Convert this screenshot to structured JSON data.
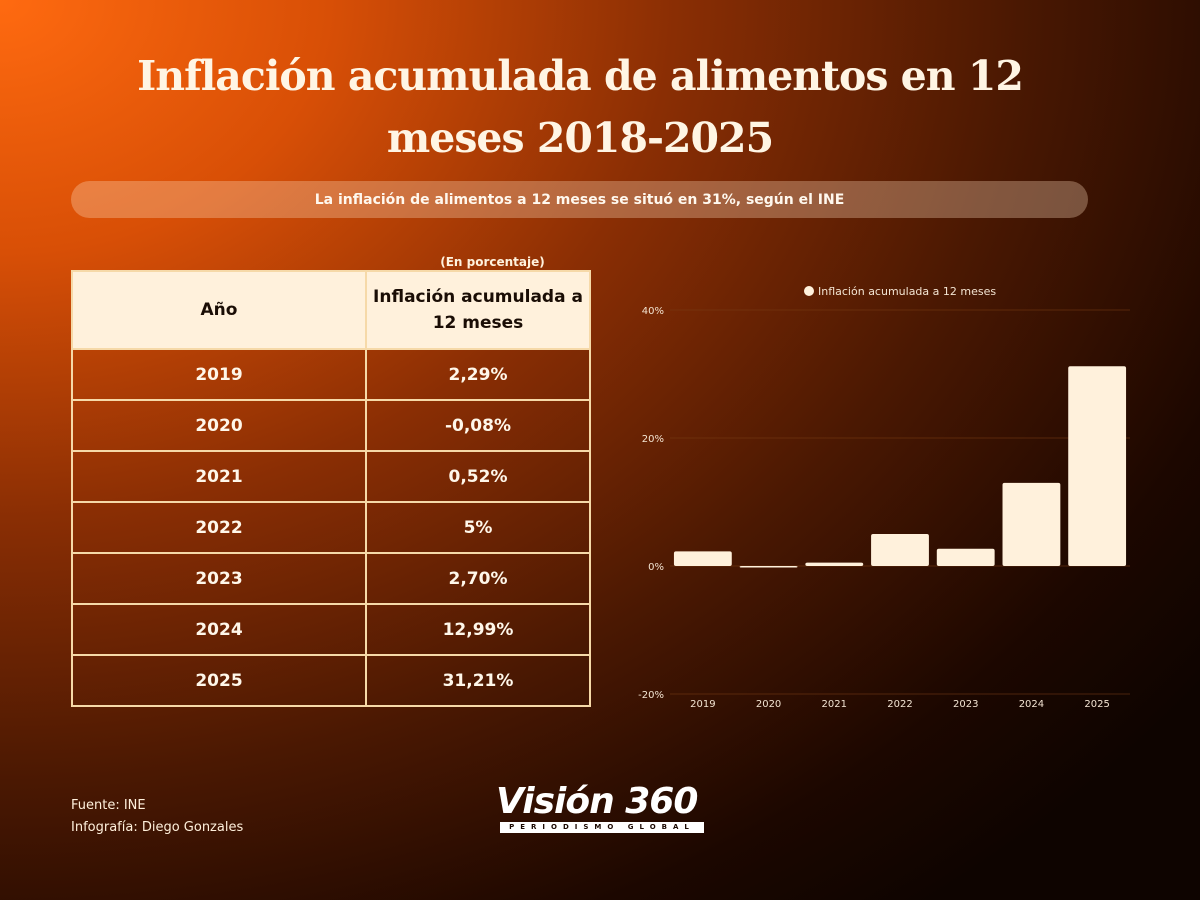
{
  "title_line1": "Inflación acumulada de alimentos en 12",
  "title_line2": "meses 2018-2025",
  "subtitle": "La inflación de alimentos a 12 meses  se situó en 31%, según el INE",
  "unit_note": "(En porcentaje)",
  "table": {
    "headers": [
      "Año",
      "Inflación acumulada a 12 meses"
    ],
    "rows": [
      [
        "2019",
        "2,29%"
      ],
      [
        "2020",
        "-0,08%"
      ],
      [
        "2021",
        "0,52%"
      ],
      [
        "2022",
        "5%"
      ],
      [
        "2023",
        "2,70%"
      ],
      [
        "2024",
        "12,99%"
      ],
      [
        "2025",
        "31,21%"
      ]
    ]
  },
  "chart_data": {
    "type": "bar",
    "categories": [
      "2019",
      "2020",
      "2021",
      "2022",
      "2023",
      "2024",
      "2025"
    ],
    "series": [
      {
        "name": "Inflación acumulada a 12 meses",
        "values": [
          2.29,
          -0.08,
          0.52,
          5,
          2.7,
          12.99,
          31.21
        ],
        "color": "#fff1dc"
      }
    ],
    "ylim": [
      -20,
      40
    ],
    "yticks": [
      -20,
      0,
      20,
      40
    ],
    "ytick_labels": [
      "-20%",
      "0%",
      "20%",
      "40%"
    ],
    "grid": true,
    "legend": "top-center",
    "xlabel": "",
    "ylabel": ""
  },
  "footer": {
    "source": "Fuente: INE",
    "credit": "Infografía: Diego Gonzales"
  },
  "logo": {
    "wordmark": "Visión 360",
    "tagline": "PERIODISMO GLOBAL"
  }
}
